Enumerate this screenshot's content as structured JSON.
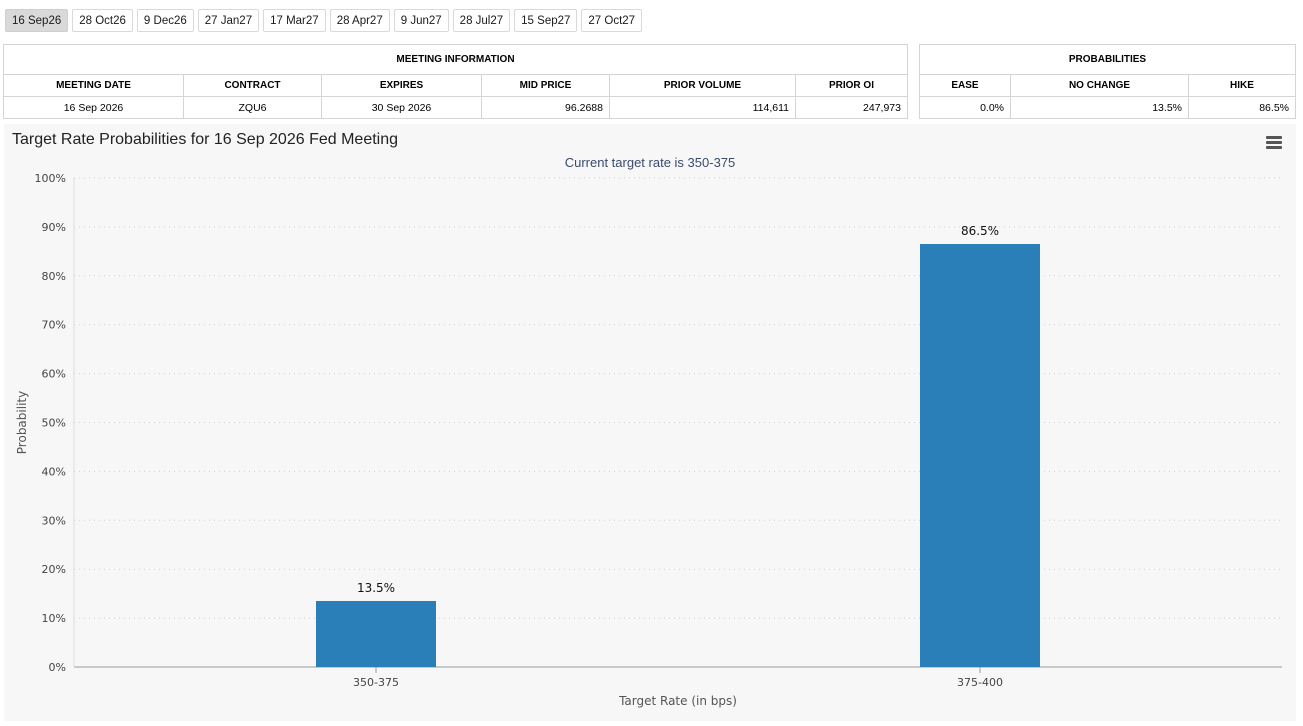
{
  "tabs": [
    {
      "label": "16 Sep26",
      "active": true
    },
    {
      "label": "28 Oct26",
      "active": false
    },
    {
      "label": "9 Dec26",
      "active": false
    },
    {
      "label": "27 Jan27",
      "active": false
    },
    {
      "label": "17 Mar27",
      "active": false
    },
    {
      "label": "28 Apr27",
      "active": false
    },
    {
      "label": "9 Jun27",
      "active": false
    },
    {
      "label": "28 Jul27",
      "active": false
    },
    {
      "label": "15 Sep27",
      "active": false
    },
    {
      "label": "27 Oct27",
      "active": false
    }
  ],
  "meeting_info": {
    "title": "MEETING INFORMATION",
    "headers": [
      "MEETING DATE",
      "CONTRACT",
      "EXPIRES",
      "MID PRICE",
      "PRIOR VOLUME",
      "PRIOR OI"
    ],
    "row": [
      "16 Sep 2026",
      "ZQU6",
      "30 Sep 2026",
      "96.2688",
      "114,611",
      "247,973"
    ]
  },
  "probabilities": {
    "title": "PROBABILITIES",
    "headers": [
      "EASE",
      "NO CHANGE",
      "HIKE"
    ],
    "row": [
      "0.0%",
      "13.5%",
      "86.5%"
    ]
  },
  "chart_data": {
    "type": "bar",
    "title": "Target Rate Probabilities for 16 Sep 2026 Fed Meeting",
    "subtitle": "Current target rate is 350-375",
    "categories": [
      "350-375",
      "375-400"
    ],
    "values": [
      13.5,
      86.5
    ],
    "data_labels": [
      "13.5%",
      "86.5%"
    ],
    "xlabel": "Target Rate (in bps)",
    "ylabel": "Probability",
    "ylim": [
      0,
      100
    ],
    "yticks": [
      "0%",
      "10%",
      "20%",
      "30%",
      "40%",
      "50%",
      "60%",
      "70%",
      "80%",
      "90%",
      "100%"
    ],
    "bar_color": "#2b7fb8",
    "grid": true
  }
}
